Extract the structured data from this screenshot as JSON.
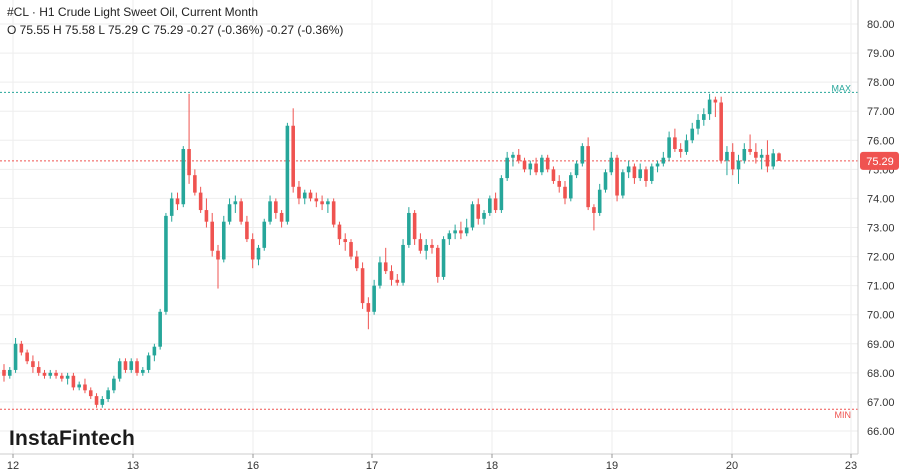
{
  "header": {
    "title": "#CL · H1 Crude Light Sweet Oil, Current Month",
    "ohlc": "O 75.55 H 75.58 L 75.29 C 75.29 -0.27 (-0.36%) -0.27 (-0.36%)"
  },
  "logo": {
    "text": "InstaFintech"
  },
  "colors": {
    "up": "#26a69a",
    "down": "#ef5350",
    "max_line": "#26a69a",
    "min_line": "#ef5350",
    "last_price": "#ef5350",
    "grid": "#eeeeee"
  },
  "chart_data": {
    "type": "candlestick",
    "ylim": [
      65.5,
      80.5
    ],
    "y_ticks": [
      "66.00",
      "67.00",
      "68.00",
      "69.00",
      "70.00",
      "71.00",
      "72.00",
      "73.00",
      "74.00",
      "75.00",
      "76.00",
      "77.00",
      "78.00",
      "79.00",
      "80.00"
    ],
    "x_ticks": [
      "12",
      "13",
      "16",
      "17",
      "18",
      "19",
      "20",
      "23"
    ],
    "max_label": "MAX",
    "min_label": "MIN",
    "max_value": 77.65,
    "min_value": 66.75,
    "last_price_label": "75.29",
    "last_price": 75.29,
    "grid": true,
    "candles": [
      [
        68.1,
        68.3,
        67.7,
        67.9
      ],
      [
        67.9,
        68.2,
        67.8,
        68.1
      ],
      [
        68.1,
        69.2,
        68.0,
        69.0
      ],
      [
        69.0,
        69.1,
        68.6,
        68.7
      ],
      [
        68.7,
        68.8,
        68.3,
        68.4
      ],
      [
        68.4,
        68.6,
        68.0,
        68.2
      ],
      [
        68.2,
        68.4,
        67.9,
        68.0
      ],
      [
        68.0,
        68.1,
        67.8,
        67.9
      ],
      [
        67.9,
        68.1,
        67.8,
        68.0
      ],
      [
        68.0,
        68.1,
        67.8,
        67.9
      ],
      [
        67.9,
        68.0,
        67.7,
        67.8
      ],
      [
        67.8,
        68.0,
        67.6,
        67.9
      ],
      [
        67.9,
        68.0,
        67.4,
        67.5
      ],
      [
        67.5,
        67.7,
        67.4,
        67.6
      ],
      [
        67.6,
        67.8,
        67.3,
        67.4
      ],
      [
        67.4,
        67.5,
        67.1,
        67.2
      ],
      [
        67.2,
        67.3,
        66.8,
        66.9
      ],
      [
        66.9,
        67.2,
        66.8,
        67.1
      ],
      [
        67.1,
        67.5,
        67.0,
        67.4
      ],
      [
        67.4,
        67.9,
        67.3,
        67.8
      ],
      [
        67.8,
        68.5,
        67.7,
        68.4
      ],
      [
        68.4,
        68.5,
        68.0,
        68.1
      ],
      [
        68.1,
        68.5,
        68.0,
        68.4
      ],
      [
        68.4,
        68.5,
        67.9,
        68.0
      ],
      [
        68.0,
        68.2,
        67.9,
        68.1
      ],
      [
        68.1,
        68.7,
        68.0,
        68.6
      ],
      [
        68.6,
        69.0,
        68.4,
        68.9
      ],
      [
        68.9,
        70.2,
        68.8,
        70.1
      ],
      [
        70.1,
        73.5,
        70.0,
        73.4
      ],
      [
        73.4,
        74.2,
        73.2,
        74.0
      ],
      [
        74.0,
        74.2,
        73.6,
        73.8
      ],
      [
        73.8,
        75.8,
        73.7,
        75.7
      ],
      [
        75.7,
        77.6,
        74.5,
        74.8
      ],
      [
        74.8,
        75.0,
        74.1,
        74.2
      ],
      [
        74.2,
        74.4,
        73.5,
        73.6
      ],
      [
        73.6,
        74.0,
        73.0,
        73.2
      ],
      [
        73.2,
        73.5,
        72.0,
        72.2
      ],
      [
        72.2,
        72.4,
        70.9,
        71.9
      ],
      [
        71.9,
        73.4,
        71.8,
        73.2
      ],
      [
        73.2,
        74.0,
        73.1,
        73.8
      ],
      [
        73.8,
        74.1,
        73.5,
        73.9
      ],
      [
        73.9,
        74.0,
        73.1,
        73.2
      ],
      [
        73.2,
        73.4,
        72.5,
        72.6
      ],
      [
        72.6,
        72.8,
        71.6,
        71.9
      ],
      [
        71.9,
        72.4,
        71.7,
        72.3
      ],
      [
        72.3,
        73.3,
        72.2,
        73.2
      ],
      [
        73.2,
        74.1,
        73.1,
        73.9
      ],
      [
        73.9,
        74.0,
        73.3,
        73.5
      ],
      [
        73.5,
        73.6,
        73.0,
        73.2
      ],
      [
        73.2,
        76.6,
        73.1,
        76.5
      ],
      [
        76.5,
        77.1,
        74.2,
        74.4
      ],
      [
        74.4,
        74.6,
        73.8,
        74.0
      ],
      [
        74.0,
        74.3,
        73.8,
        74.2
      ],
      [
        74.2,
        74.3,
        73.9,
        74.0
      ],
      [
        74.0,
        74.2,
        73.7,
        73.9
      ],
      [
        73.9,
        74.1,
        73.6,
        73.8
      ],
      [
        73.8,
        74.0,
        73.5,
        73.9
      ],
      [
        73.9,
        74.0,
        73.0,
        73.1
      ],
      [
        73.1,
        73.2,
        72.4,
        72.6
      ],
      [
        72.6,
        72.8,
        72.2,
        72.5
      ],
      [
        72.5,
        72.6,
        71.9,
        72.0
      ],
      [
        72.0,
        72.2,
        71.5,
        71.6
      ],
      [
        71.6,
        71.8,
        70.2,
        70.4
      ],
      [
        70.4,
        70.6,
        69.5,
        70.1
      ],
      [
        70.1,
        71.2,
        70.0,
        71.0
      ],
      [
        71.0,
        72.0,
        70.9,
        71.8
      ],
      [
        71.8,
        72.3,
        71.4,
        71.5
      ],
      [
        71.5,
        71.7,
        71.0,
        71.2
      ],
      [
        71.2,
        71.4,
        71.0,
        71.1
      ],
      [
        71.1,
        72.6,
        71.0,
        72.4
      ],
      [
        72.4,
        73.7,
        72.3,
        73.5
      ],
      [
        73.5,
        73.6,
        72.4,
        72.6
      ],
      [
        72.6,
        72.8,
        72.1,
        72.2
      ],
      [
        72.2,
        72.6,
        71.9,
        72.4
      ],
      [
        72.4,
        72.6,
        72.1,
        72.3
      ],
      [
        72.3,
        72.4,
        71.1,
        71.3
      ],
      [
        71.3,
        72.7,
        71.2,
        72.6
      ],
      [
        72.6,
        72.9,
        72.4,
        72.8
      ],
      [
        72.8,
        73.1,
        72.6,
        72.9
      ],
      [
        72.9,
        73.2,
        72.6,
        72.8
      ],
      [
        72.8,
        73.3,
        72.7,
        73.0
      ],
      [
        73.0,
        73.9,
        72.9,
        73.8
      ],
      [
        73.8,
        74.0,
        73.1,
        73.3
      ],
      [
        73.3,
        73.6,
        73.1,
        73.5
      ],
      [
        73.5,
        74.1,
        73.4,
        74.0
      ],
      [
        74.0,
        74.2,
        73.5,
        73.6
      ],
      [
        73.6,
        74.8,
        73.5,
        74.7
      ],
      [
        74.7,
        75.6,
        74.6,
        75.4
      ],
      [
        75.4,
        75.6,
        75.1,
        75.5
      ],
      [
        75.5,
        75.7,
        75.2,
        75.3
      ],
      [
        75.3,
        75.4,
        74.9,
        75.0
      ],
      [
        75.0,
        75.3,
        74.8,
        75.2
      ],
      [
        75.2,
        75.4,
        74.8,
        74.9
      ],
      [
        74.9,
        75.5,
        74.8,
        75.4
      ],
      [
        75.4,
        75.5,
        74.9,
        75.0
      ],
      [
        75.0,
        75.1,
        74.5,
        74.6
      ],
      [
        74.6,
        74.8,
        74.2,
        74.4
      ],
      [
        74.4,
        74.6,
        73.8,
        74.0
      ],
      [
        74.0,
        74.9,
        73.9,
        74.8
      ],
      [
        74.8,
        75.3,
        74.7,
        75.2
      ],
      [
        75.2,
        75.9,
        75.1,
        75.8
      ],
      [
        75.8,
        76.1,
        73.6,
        73.7
      ],
      [
        73.7,
        73.8,
        72.9,
        73.5
      ],
      [
        73.5,
        74.5,
        73.4,
        74.3
      ],
      [
        74.3,
        75.0,
        74.2,
        74.9
      ],
      [
        74.9,
        75.6,
        74.8,
        75.4
      ],
      [
        75.4,
        75.5,
        73.9,
        74.1
      ],
      [
        74.1,
        75.0,
        74.0,
        74.9
      ],
      [
        74.9,
        75.3,
        74.7,
        75.1
      ],
      [
        75.1,
        75.2,
        74.5,
        74.7
      ],
      [
        74.7,
        75.2,
        74.6,
        75.0
      ],
      [
        75.0,
        75.1,
        74.4,
        74.6
      ],
      [
        74.6,
        75.2,
        74.5,
        75.1
      ],
      [
        75.1,
        75.3,
        74.9,
        75.2
      ],
      [
        75.2,
        75.6,
        75.1,
        75.4
      ],
      [
        75.4,
        76.3,
        75.3,
        76.1
      ],
      [
        76.1,
        76.4,
        75.6,
        75.7
      ],
      [
        75.7,
        75.9,
        75.4,
        75.6
      ],
      [
        75.6,
        76.2,
        75.5,
        76.0
      ],
      [
        76.0,
        76.6,
        75.9,
        76.4
      ],
      [
        76.4,
        76.9,
        76.2,
        76.7
      ],
      [
        76.7,
        77.1,
        76.5,
        76.9
      ],
      [
        76.9,
        77.6,
        76.7,
        77.4
      ],
      [
        77.4,
        77.5,
        76.8,
        77.3
      ],
      [
        77.3,
        77.5,
        75.2,
        75.3
      ],
      [
        75.3,
        75.8,
        74.8,
        75.6
      ],
      [
        75.6,
        75.9,
        74.8,
        75.0
      ],
      [
        75.0,
        75.5,
        74.5,
        75.3
      ],
      [
        75.3,
        75.9,
        75.2,
        75.7
      ],
      [
        75.7,
        76.2,
        75.5,
        75.6
      ],
      [
        75.6,
        75.9,
        75.2,
        75.4
      ],
      [
        75.4,
        75.7,
        75.0,
        75.5
      ],
      [
        75.5,
        76.0,
        74.9,
        75.1
      ],
      [
        75.1,
        75.7,
        75.0,
        75.55
      ],
      [
        75.55,
        75.58,
        75.29,
        75.29
      ]
    ]
  }
}
